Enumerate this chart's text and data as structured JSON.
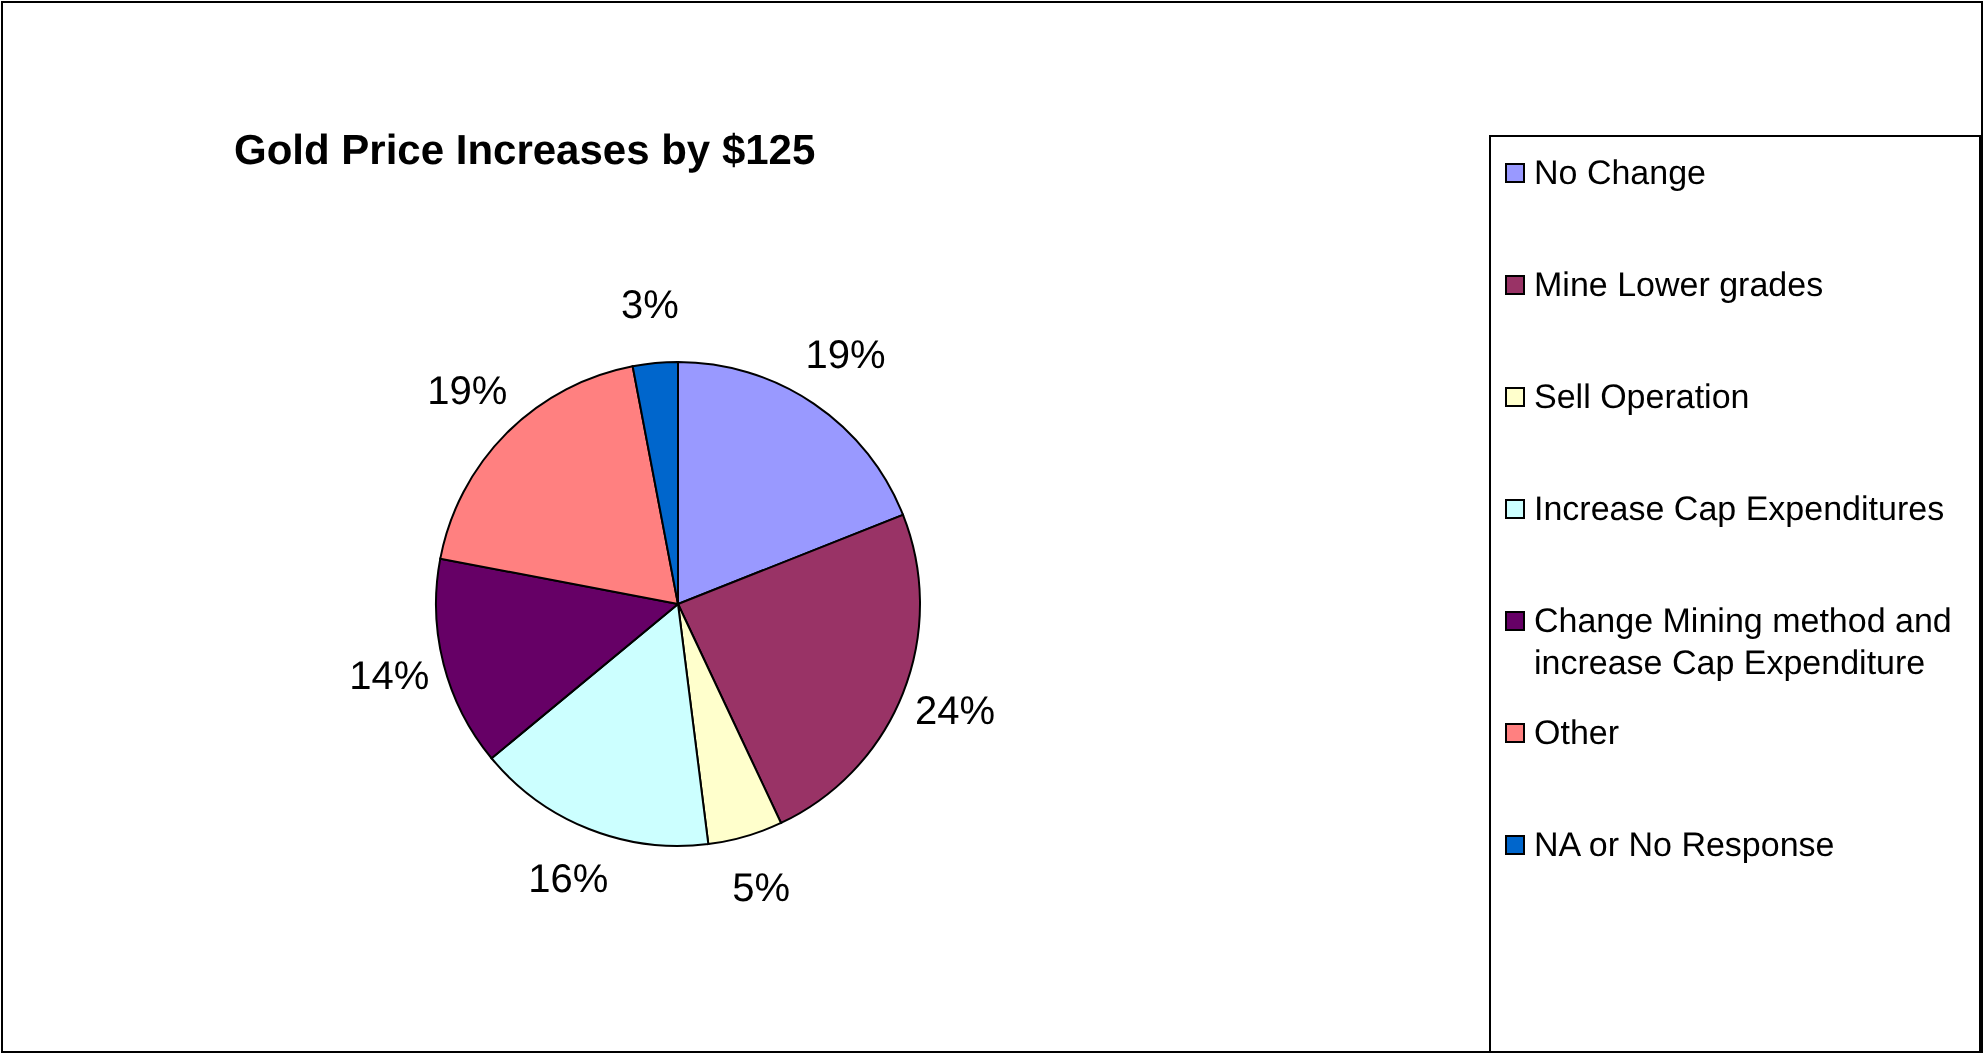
{
  "chart_data": {
    "type": "pie",
    "title": "Gold Price Increases by $125",
    "categories": [
      "No Change",
      "Mine Lower grades",
      "Sell Operation",
      "Increase Cap Expenditures",
      "Change Mining method and increase Cap Expenditure",
      "Other",
      "NA or No Response"
    ],
    "values": [
      19,
      24,
      5,
      16,
      14,
      19,
      3
    ],
    "colors": [
      "#9999ff",
      "#993366",
      "#ffffcc",
      "#ccffff",
      "#660066",
      "#ff8080",
      "#0066cc"
    ],
    "value_labels": [
      "19%",
      "24%",
      "5%",
      "16%",
      "14%",
      "19%",
      "3%"
    ],
    "legend": "right"
  }
}
